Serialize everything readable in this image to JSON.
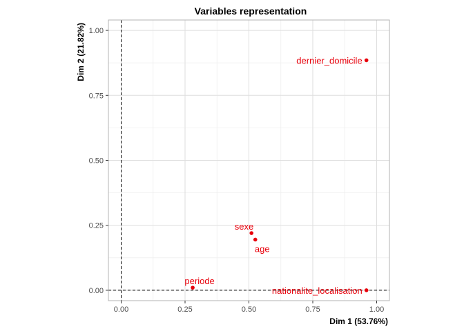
{
  "chart_data": {
    "type": "scatter",
    "title": "Variables representation",
    "xlabel": "Dim 1 (53.76%)",
    "ylabel": "Dim 2 (21.82%)",
    "xlim": [
      -0.05,
      1.05
    ],
    "ylim": [
      -0.04,
      1.04
    ],
    "x_ticks": [
      "0.00",
      "0.25",
      "0.50",
      "0.75",
      "1.00"
    ],
    "y_ticks": [
      "0.00",
      "0.25",
      "0.50",
      "0.75",
      "1.00"
    ],
    "grid": true,
    "reference_lines": {
      "x": 0,
      "y": 0,
      "style": "dashed"
    },
    "point_color": "#e8000b",
    "points": [
      {
        "label": "dernier_domicile",
        "x": 0.96,
        "y": 0.885
      },
      {
        "label": "sexe",
        "x": 0.51,
        "y": 0.22
      },
      {
        "label": "age",
        "x": 0.525,
        "y": 0.195
      },
      {
        "label": "periode",
        "x": 0.28,
        "y": 0.01
      },
      {
        "label": "nationalite_localisation",
        "x": 0.96,
        "y": 0.0
      }
    ]
  }
}
